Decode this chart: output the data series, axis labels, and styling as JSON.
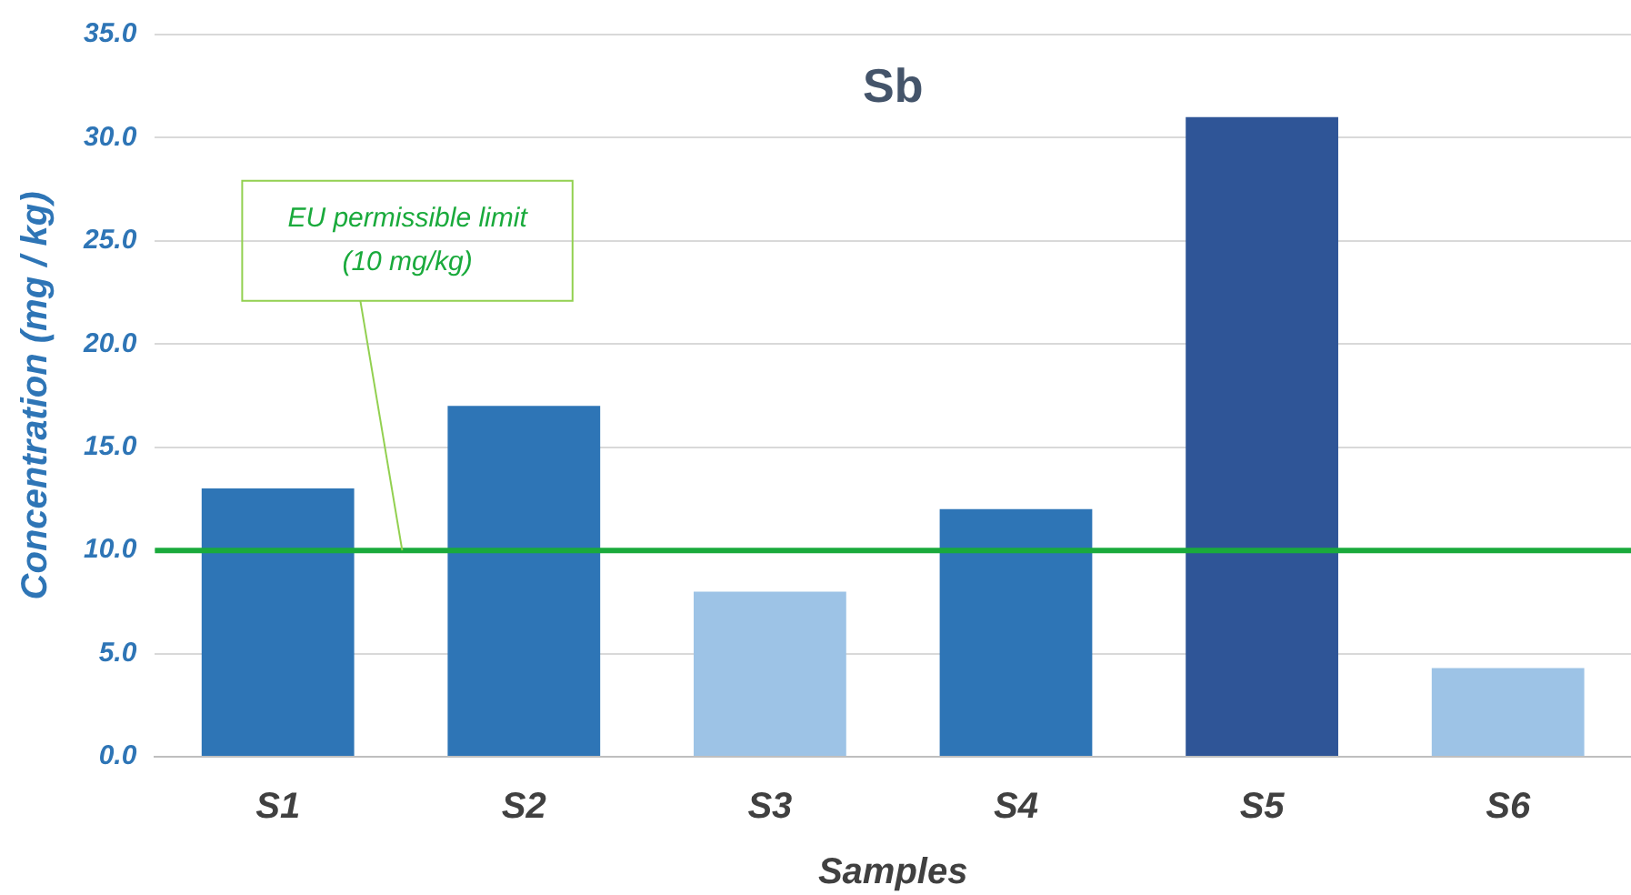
{
  "chart_data": {
    "type": "bar",
    "title": "Sb",
    "xlabel": "Samples",
    "ylabel": "Concentration (mg / kg)",
    "categories": [
      "S1",
      "S2",
      "S3",
      "S4",
      "S5",
      "S6"
    ],
    "values": [
      13.0,
      17.0,
      8.0,
      12.0,
      31.0,
      4.3
    ],
    "colors": [
      "#2e75b6",
      "#2e75b6",
      "#9dc3e6",
      "#2e75b6",
      "#2f5597",
      "#9dc3e6"
    ],
    "ylim": [
      0,
      35
    ],
    "yticks": [
      {
        "value": 0,
        "label": "0.0"
      },
      {
        "value": 5,
        "label": "5.0"
      },
      {
        "value": 10,
        "label": "10.0"
      },
      {
        "value": 15,
        "label": "15.0"
      },
      {
        "value": 20,
        "label": "20.0"
      },
      {
        "value": 25,
        "label": "25.0"
      },
      {
        "value": 30,
        "label": "30.0"
      },
      {
        "value": 35,
        "label": "35.0"
      }
    ],
    "grid": "y",
    "ref_lines": [
      {
        "axis": "y",
        "value": 10,
        "label": "EU permissible limit\n(10 mg/kg)",
        "color": "#1aaa3c"
      }
    ]
  }
}
